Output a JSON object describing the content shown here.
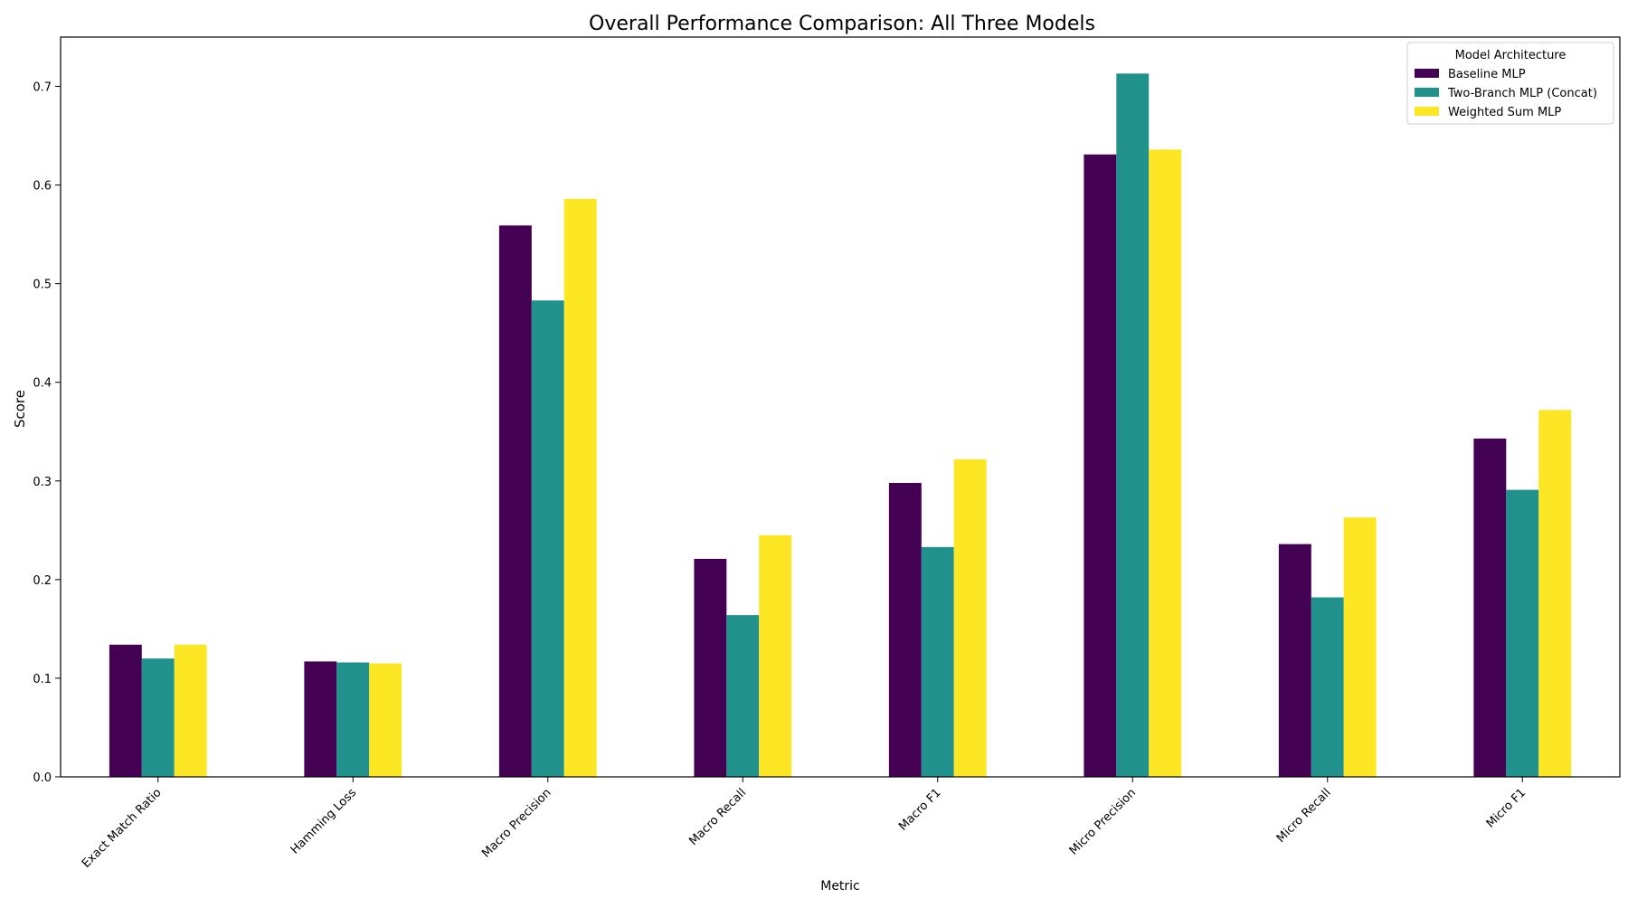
{
  "chart_data": {
    "type": "bar",
    "title": "Overall Performance Comparison: All Three Models",
    "xlabel": "Metric",
    "ylabel": "Score",
    "ylim": [
      0,
      0.75
    ],
    "yticks": [
      "0.0",
      "0.1",
      "0.2",
      "0.3",
      "0.4",
      "0.5",
      "0.6",
      "0.7"
    ],
    "grid": false,
    "legend": {
      "title": "Model Architecture",
      "placement": "top-right"
    },
    "categories": [
      "Exact Match Ratio",
      "Hamming Loss",
      "Macro Precision",
      "Macro Recall",
      "Macro F1",
      "Micro Precision",
      "Micro Recall",
      "Micro F1"
    ],
    "series": [
      {
        "name": "Baseline MLP",
        "color": "#440154",
        "values": [
          0.134,
          0.117,
          0.559,
          0.221,
          0.298,
          0.631,
          0.236,
          0.343
        ]
      },
      {
        "name": "Two-Branch MLP (Concat)",
        "color": "#21918c",
        "values": [
          0.12,
          0.116,
          0.483,
          0.164,
          0.233,
          0.713,
          0.182,
          0.291
        ]
      },
      {
        "name": "Weighted Sum MLP",
        "color": "#fde725",
        "values": [
          0.134,
          0.115,
          0.586,
          0.245,
          0.322,
          0.636,
          0.263,
          0.372
        ]
      }
    ]
  }
}
